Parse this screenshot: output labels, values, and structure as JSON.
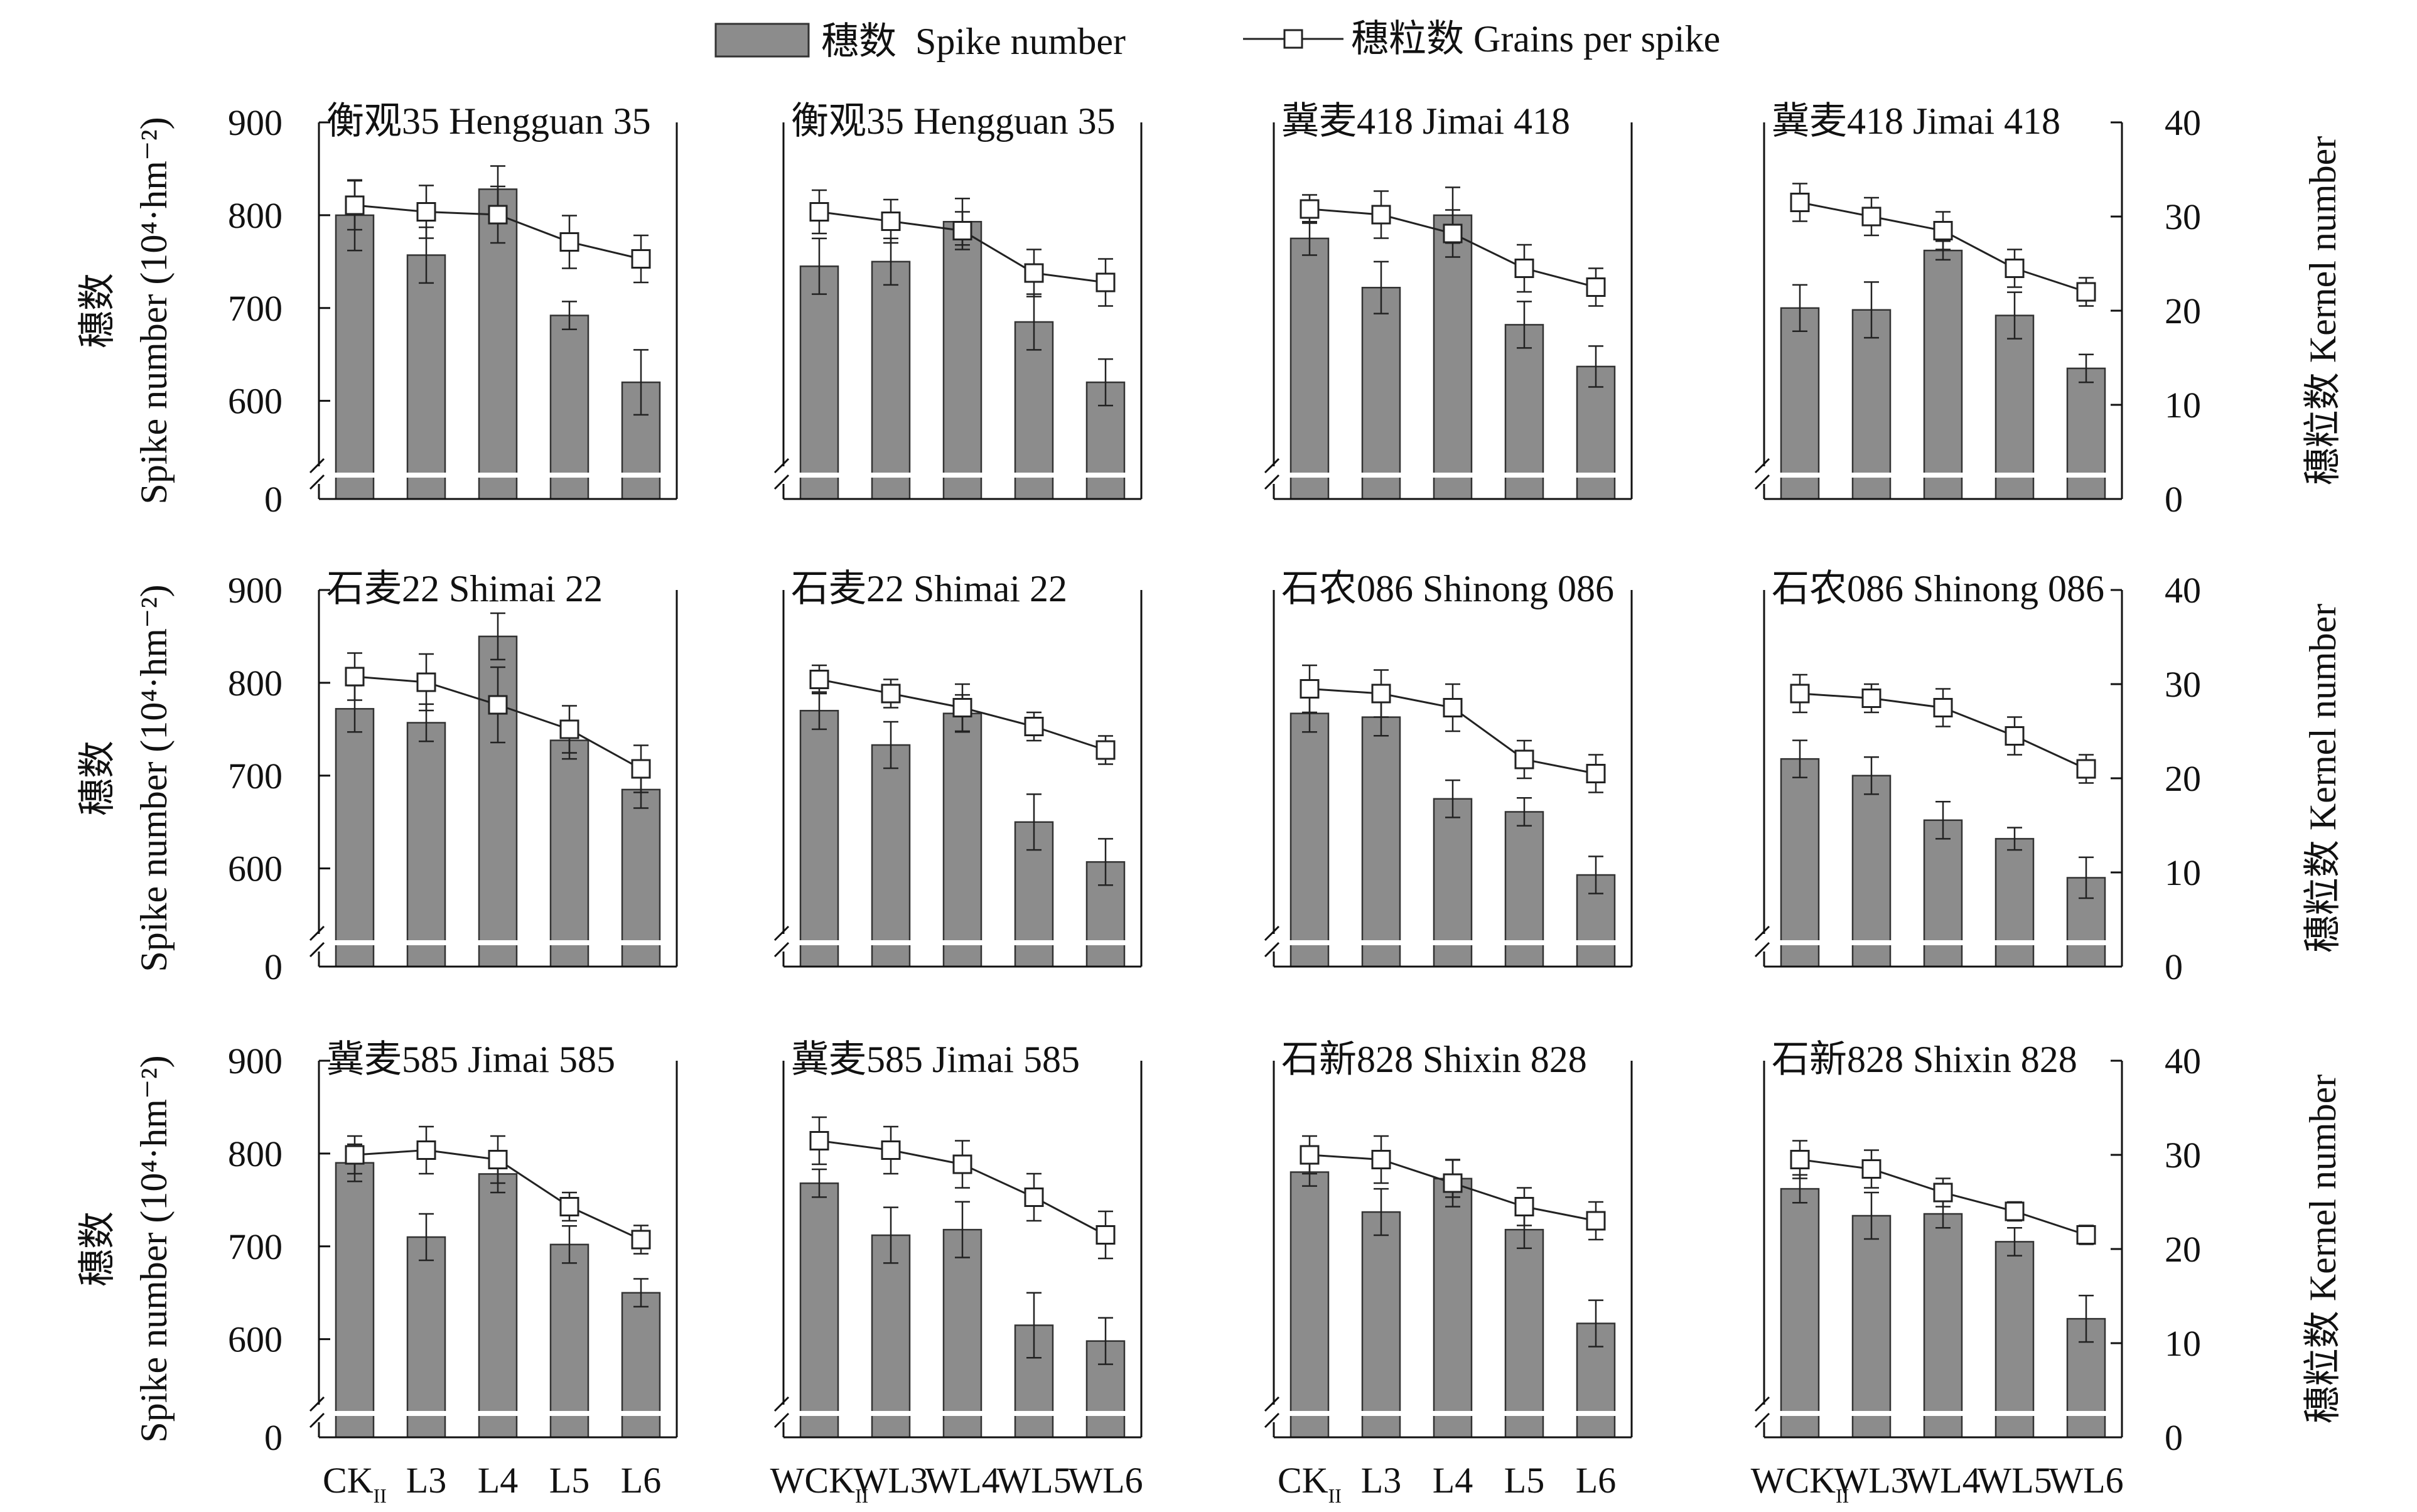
{
  "chart_data": {
    "type": "bar+line",
    "legend": {
      "position": "top-center",
      "bar_label": "穗数  Spike number",
      "line_label": "穗粒数 Grains per spike"
    },
    "left_axis": {
      "label_cn": "穗数",
      "label_en": "Spike number (10⁴·hm⁻²)",
      "ticks": [
        "900",
        "800",
        "700",
        "600",
        "0"
      ],
      "range_visible": [
        520,
        900
      ],
      "break": true
    },
    "right_axis": {
      "label": "穗粒数 Kernel number",
      "ticks": [
        "40",
        "30",
        "20",
        "10",
        "0"
      ],
      "range": [
        0,
        40
      ]
    },
    "colors": {
      "bar": "#8c8c8c",
      "line": "#222222",
      "marker_fill": "#ffffff"
    },
    "categories_left": [
      "CK",
      "L3",
      "L4",
      "L5",
      "L6"
    ],
    "categories_right": [
      "WCK",
      "WL3",
      "WL4",
      "WL5",
      "WL6"
    ],
    "ck_subscript": "II",
    "panels": [
      {
        "title": "衡观35  Hengguan 35",
        "cats": "left",
        "spike": [
          800,
          757,
          828,
          692,
          620
        ],
        "spike_err": [
          38,
          30,
          25,
          15,
          35
        ],
        "grains": [
          31.2,
          30.5,
          30.2,
          27.3,
          25.5
        ],
        "grains_err": [
          2.6,
          2.8,
          3.0,
          2.8,
          2.5
        ]
      },
      {
        "title": "衡观35  Hengguan 35",
        "cats": "right",
        "spike": [
          745,
          750,
          793,
          685,
          620
        ],
        "spike_err": [
          30,
          25,
          25,
          30,
          25
        ],
        "grains": [
          30.5,
          29.5,
          28.5,
          24.0,
          23.0
        ],
        "grains_err": [
          2.3,
          2.3,
          2.0,
          2.5,
          2.5
        ]
      },
      {
        "title": "冀麦418 Jimai 418",
        "cats": "left",
        "spike": [
          775,
          722,
          800,
          682,
          637
        ],
        "spike_err": [
          18,
          28,
          30,
          25,
          22
        ],
        "grains": [
          30.8,
          30.2,
          28.2,
          24.5,
          22.5
        ],
        "grains_err": [
          1.5,
          2.5,
          2.5,
          2.5,
          2.0
        ]
      },
      {
        "title": "冀麦418 Jimai 418",
        "cats": "right",
        "spike": [
          700,
          698,
          762,
          692,
          635
        ],
        "spike_err": [
          25,
          30,
          10,
          25,
          15
        ],
        "grains": [
          31.5,
          30.0,
          28.5,
          24.5,
          22.0
        ],
        "grains_err": [
          2.0,
          2.0,
          2.0,
          2.0,
          1.5
        ]
      },
      {
        "title": "石麦22 Shimai 22",
        "cats": "left",
        "spike": [
          772,
          757,
          850,
          738,
          685
        ],
        "spike_err": [
          25,
          20,
          25,
          20,
          20
        ],
        "grains": [
          30.8,
          30.2,
          27.8,
          25.2,
          21.0
        ],
        "grains_err": [
          2.5,
          3.0,
          4.0,
          2.5,
          2.5
        ]
      },
      {
        "title": "石麦22 Shimai 22",
        "cats": "right",
        "spike": [
          770,
          733,
          767,
          650,
          607
        ],
        "spike_err": [
          20,
          25,
          20,
          30,
          25
        ],
        "grains": [
          30.5,
          29.0,
          27.5,
          25.5,
          23.0
        ],
        "grains_err": [
          1.5,
          1.5,
          2.5,
          1.5,
          1.5
        ]
      },
      {
        "title": "石农086 Shinong 086",
        "cats": "left",
        "spike": [
          767,
          763,
          675,
          661,
          593
        ],
        "spike_err": [
          20,
          20,
          20,
          15,
          20
        ],
        "grains": [
          29.5,
          29.0,
          27.5,
          22.0,
          20.5
        ],
        "grains_err": [
          2.5,
          2.5,
          2.5,
          2.0,
          2.0
        ]
      },
      {
        "title": "石农086 Shinong 086",
        "cats": "right",
        "spike": [
          718,
          700,
          652,
          632,
          590
        ],
        "spike_err": [
          20,
          20,
          20,
          12,
          22
        ],
        "grains": [
          29.0,
          28.5,
          27.5,
          24.5,
          21.0
        ],
        "grains_err": [
          2.0,
          1.5,
          2.0,
          2.0,
          1.5
        ]
      },
      {
        "title": "冀麦585 Jimai 585",
        "cats": "left",
        "spike": [
          790,
          710,
          778,
          702,
          650
        ],
        "spike_err": [
          20,
          25,
          20,
          20,
          15
        ],
        "grains": [
          30.0,
          30.5,
          29.5,
          24.5,
          21.0
        ],
        "grains_err": [
          2.0,
          2.5,
          2.5,
          1.5,
          1.5
        ]
      },
      {
        "title": "冀麦585 Jimai 585",
        "cats": "right",
        "spike": [
          768,
          712,
          718,
          615,
          598
        ],
        "spike_err": [
          15,
          30,
          30,
          35,
          25
        ],
        "grains": [
          31.5,
          30.5,
          29.0,
          25.5,
          21.5
        ],
        "grains_err": [
          2.5,
          2.5,
          2.5,
          2.5,
          2.5
        ]
      },
      {
        "title": "石新828 Shixin 828",
        "cats": "left",
        "spike": [
          780,
          737,
          773,
          718,
          617
        ],
        "spike_err": [
          15,
          25,
          20,
          20,
          25
        ],
        "grains": [
          30.0,
          29.5,
          27.0,
          24.5,
          23.0
        ],
        "grains_err": [
          2.0,
          2.5,
          2.5,
          2.0,
          2.0
        ]
      },
      {
        "title": "石新828 Shixin 828",
        "cats": "right",
        "spike": [
          762,
          733,
          735,
          705,
          622
        ],
        "spike_err": [
          15,
          25,
          15,
          15,
          25
        ],
        "grains": [
          29.5,
          28.5,
          26.0,
          24.0,
          21.5
        ],
        "grains_err": [
          2.0,
          2.0,
          1.5,
          1.0,
          1.0
        ]
      }
    ]
  }
}
